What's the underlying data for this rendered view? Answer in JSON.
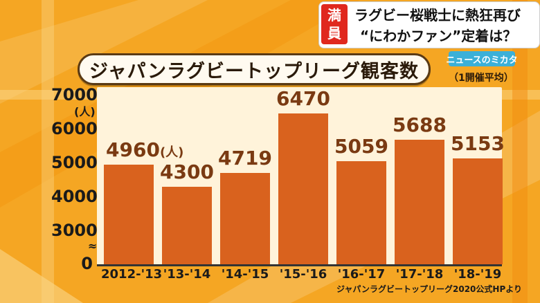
{
  "headline": {
    "badge": [
      "満",
      "員"
    ],
    "line1": "ラグビー桜戦士に熱狂再び",
    "line2": "“にわかファン”定着は？",
    "brand": "ニュースのミカタ"
  },
  "chart_data": {
    "type": "bar",
    "title": "ジャパンラグビートップリーグ観客数",
    "subtitle": "（1開催平均）",
    "categories": [
      "2012-'13",
      "'13-'14",
      "'14-'15",
      "'15-'16",
      "'16-'17",
      "'17-'18",
      "'18-'19"
    ],
    "values": [
      4960,
      4300,
      4719,
      6470,
      5059,
      5688,
      5153
    ],
    "value_labels": [
      "4960",
      "4300",
      "4719",
      "6470",
      "5059",
      "5688",
      "5153"
    ],
    "first_value_unit": "(人)",
    "y_unit": "(人)",
    "y_ticks": [
      "7000",
      "6000",
      "5000",
      "4000",
      "3000",
      "0"
    ],
    "y_axis_break": "≈",
    "ylim": [
      2500,
      7000
    ],
    "bar_color": "#d9621e",
    "grid": false,
    "source": "ジャパンラグビートップリーグ2020公式HPより"
  }
}
